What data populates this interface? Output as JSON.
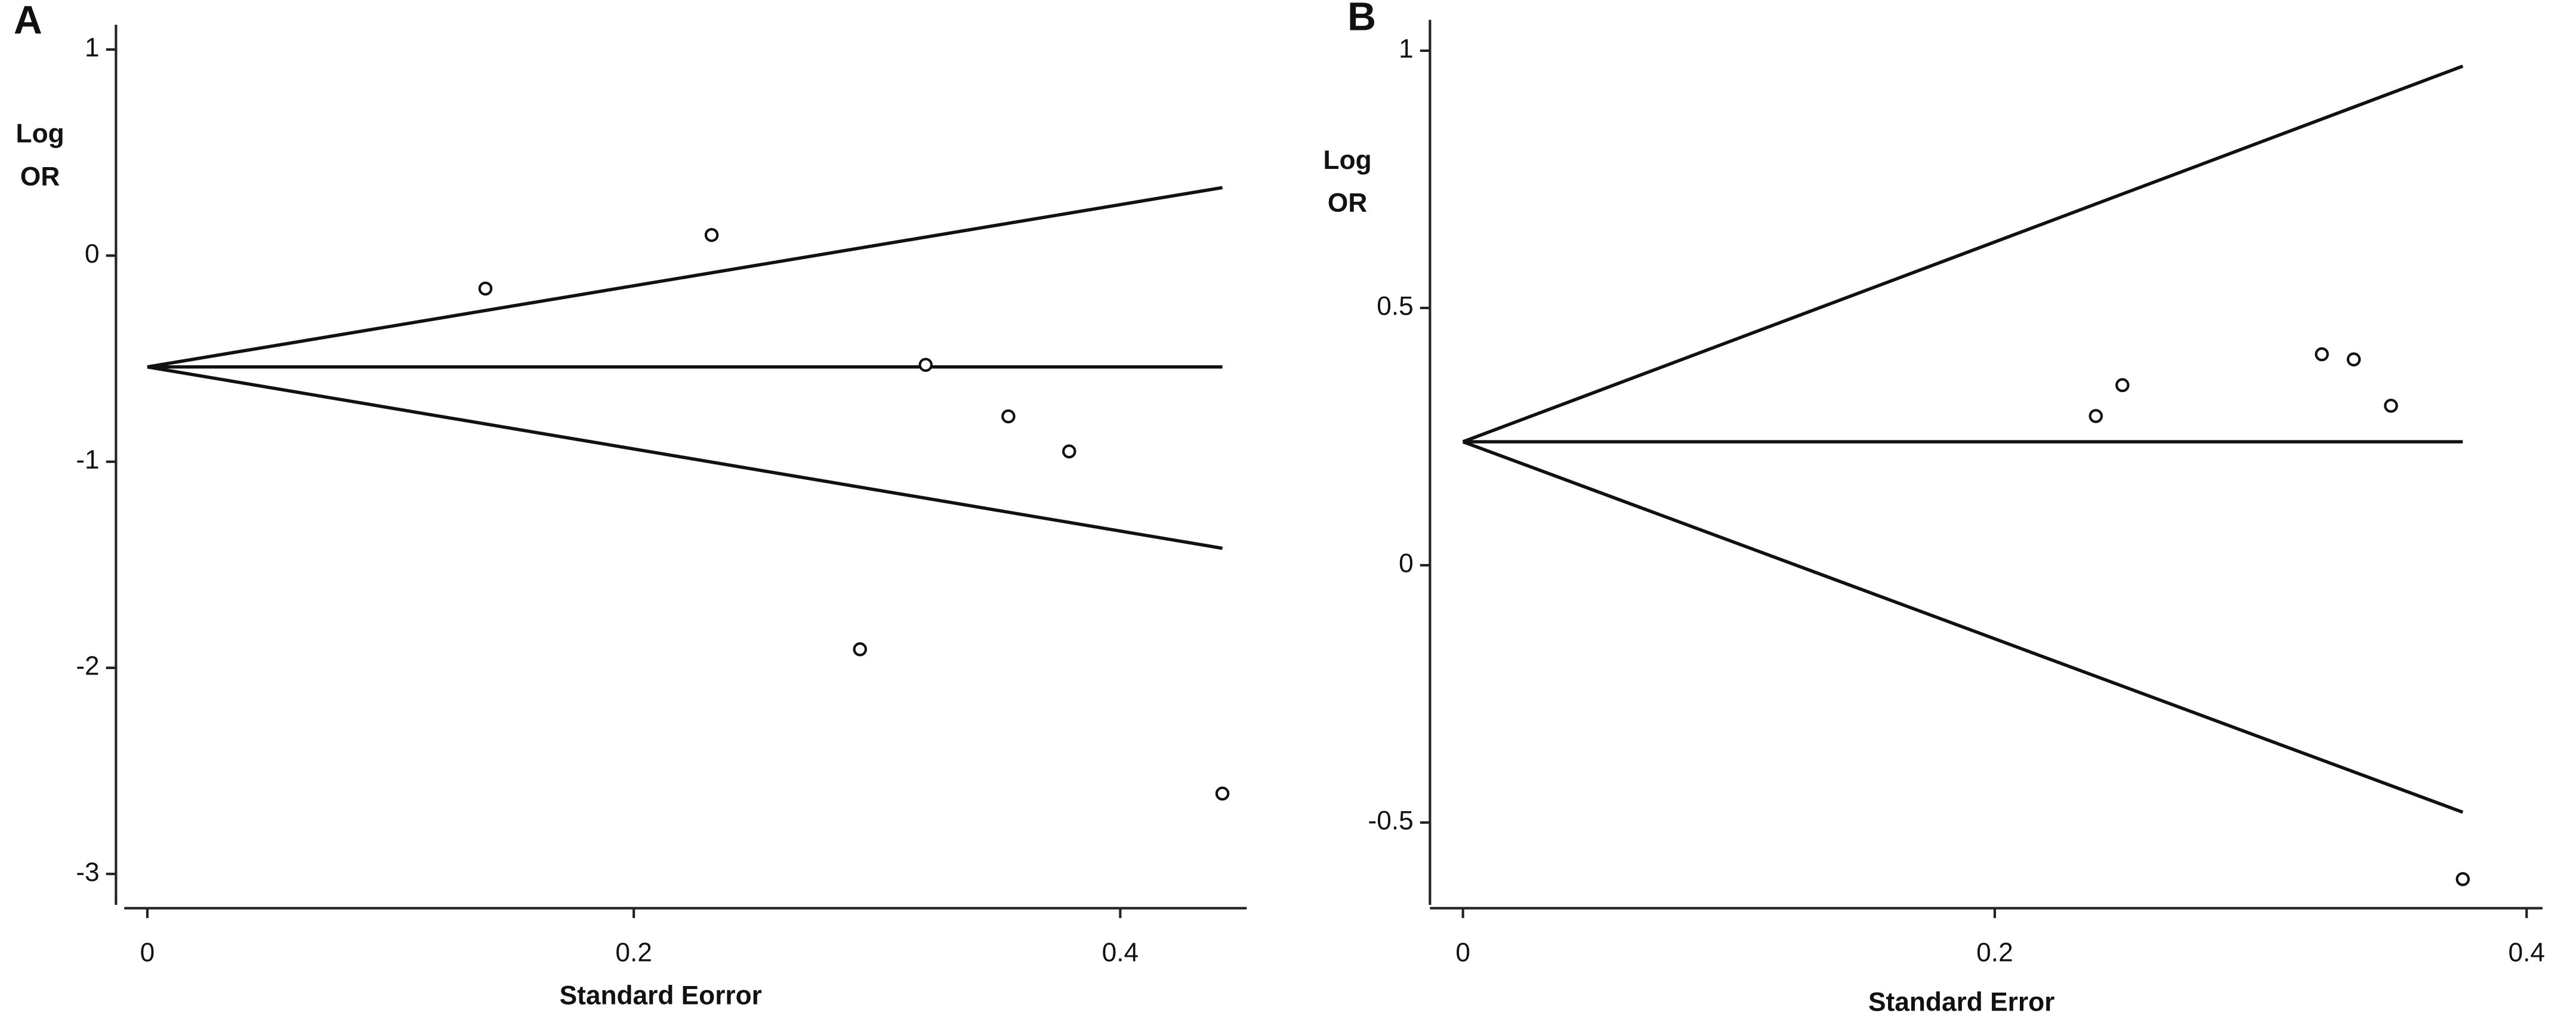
{
  "chart_data": [
    {
      "type": "scatter",
      "panel_label": "A",
      "ylabel_lines": [
        "Log",
        "OR"
      ],
      "xlabel": "Standard Eorror",
      "x": [
        0.139,
        0.232,
        0.32,
        0.354,
        0.379,
        0.293,
        0.442
      ],
      "values": [
        -0.16,
        0.1,
        -0.53,
        -0.78,
        -0.95,
        -1.91,
        -2.61
      ],
      "funnel": {
        "x": [
          0,
          0.442
        ],
        "upper": [
          -0.54,
          0.33
        ],
        "center": [
          -0.54,
          -0.54
        ],
        "lower": [
          -0.54,
          -1.42
        ]
      },
      "xlim": [
        -0.0095,
        0.452
      ],
      "ylim": [
        -3.15,
        1.12
      ],
      "xticks": [
        0,
        0.2,
        0.4
      ],
      "yticks": [
        1,
        0,
        -1,
        -2,
        -3
      ],
      "color": "#111111"
    },
    {
      "type": "scatter",
      "panel_label": "B",
      "ylabel_lines": [
        "Log",
        "OR"
      ],
      "xlabel": "Standard Error",
      "x": [
        0.238,
        0.248,
        0.323,
        0.335,
        0.349,
        0.376
      ],
      "values": [
        0.29,
        0.35,
        0.41,
        0.4,
        0.31,
        -0.61
      ],
      "funnel": {
        "x": [
          0,
          0.376
        ],
        "upper": [
          0.24,
          0.97
        ],
        "center": [
          0.24,
          0.24
        ],
        "lower": [
          0.24,
          -0.48
        ]
      },
      "xlim": [
        -0.0124,
        0.406
      ],
      "ylim": [
        -0.66,
        1.06
      ],
      "xticks": [
        0,
        0.2,
        0.4
      ],
      "yticks": [
        1,
        0.5,
        0,
        -0.5
      ],
      "color": "#111111"
    }
  ]
}
